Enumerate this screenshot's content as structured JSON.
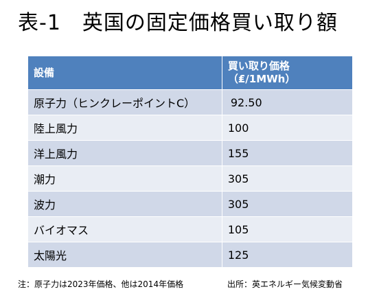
{
  "title": "表-1　英国の固定価格買い取り額",
  "table": {
    "headers": {
      "facility": "設備",
      "price_line1": "買い取り価格",
      "price_line2": "（₤/1MWh）"
    },
    "rows": [
      {
        "facility": "原子力（ヒンクレーポイントC）",
        "price": "92.50"
      },
      {
        "facility": "陸上風力",
        "price": "100"
      },
      {
        "facility": "洋上風力",
        "price": "155"
      },
      {
        "facility": "潮力",
        "price": "305"
      },
      {
        "facility": "波力",
        "price": "305"
      },
      {
        "facility": "バイオマス",
        "price": "105"
      },
      {
        "facility": "太陽光",
        "price": "125"
      }
    ]
  },
  "footer": {
    "note": "注：原子力は2023年価格、他は2014年価格",
    "source": "出所：英エネルギー気候変動省"
  }
}
